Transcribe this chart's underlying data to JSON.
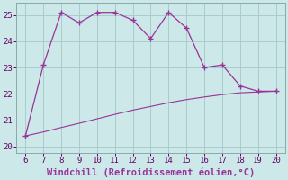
{
  "xlabel": "Windchill (Refroidissement éolien,°C)",
  "x_main": [
    6,
    7,
    8,
    9,
    10,
    11,
    12,
    13,
    14,
    15,
    16,
    17,
    18,
    19,
    20
  ],
  "y_main": [
    20.4,
    23.1,
    25.1,
    24.7,
    25.1,
    25.1,
    24.8,
    24.1,
    25.1,
    24.5,
    23.0,
    23.1,
    22.3,
    22.1,
    22.1
  ],
  "x_line2": [
    6,
    7,
    8,
    9,
    10,
    11,
    12,
    13,
    14,
    15,
    16,
    17,
    18,
    19,
    20
  ],
  "y_line2": [
    20.4,
    20.55,
    20.72,
    20.88,
    21.05,
    21.22,
    21.38,
    21.52,
    21.66,
    21.78,
    21.88,
    21.97,
    22.04,
    22.07,
    22.1
  ],
  "line_color": "#993399",
  "bg_color": "#cce8e8",
  "grid_color": "#aacccc",
  "xlim": [
    5.5,
    20.5
  ],
  "ylim": [
    19.75,
    25.45
  ],
  "yticks": [
    20,
    21,
    22,
    23,
    24,
    25
  ],
  "xticks": [
    6,
    7,
    8,
    9,
    10,
    11,
    12,
    13,
    14,
    15,
    16,
    17,
    18,
    19,
    20
  ],
  "tick_fontsize": 6.5,
  "xlabel_fontsize": 7.5
}
